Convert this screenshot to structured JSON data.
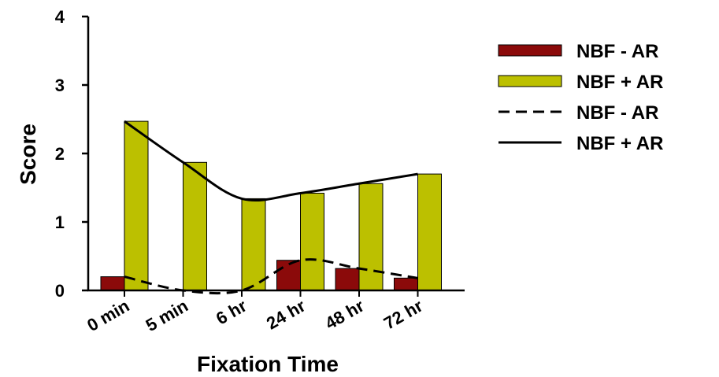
{
  "chart_data": {
    "type": "bar",
    "xlabel": "Fixation Time",
    "ylabel": "Score",
    "categories": [
      "0 min",
      "5 min",
      "6 hr",
      "24 hr",
      "48 hr",
      "72 hr"
    ],
    "ylim": [
      0,
      4
    ],
    "yticks": [
      0,
      1,
      2,
      3,
      4
    ],
    "grid": false,
    "legend_position": "right",
    "series": [
      {
        "name": "NBF - AR",
        "kind": "bar",
        "color": "#8b0a0a",
        "values": [
          0.2,
          0.0,
          0.0,
          0.44,
          0.32,
          0.18
        ]
      },
      {
        "name": "NBF + AR",
        "kind": "bar",
        "color": "#bcc000",
        "values": [
          2.47,
          1.87,
          1.34,
          1.42,
          1.56,
          1.7
        ]
      },
      {
        "name": "NBF - AR",
        "kind": "line",
        "style": "dashed",
        "color": "#000000",
        "values": [
          0.2,
          0.0,
          0.0,
          0.44,
          0.32,
          0.18
        ]
      },
      {
        "name": "NBF + AR",
        "kind": "line",
        "style": "solid",
        "color": "#000000",
        "values": [
          2.47,
          1.87,
          1.34,
          1.42,
          1.56,
          1.7
        ]
      }
    ]
  }
}
